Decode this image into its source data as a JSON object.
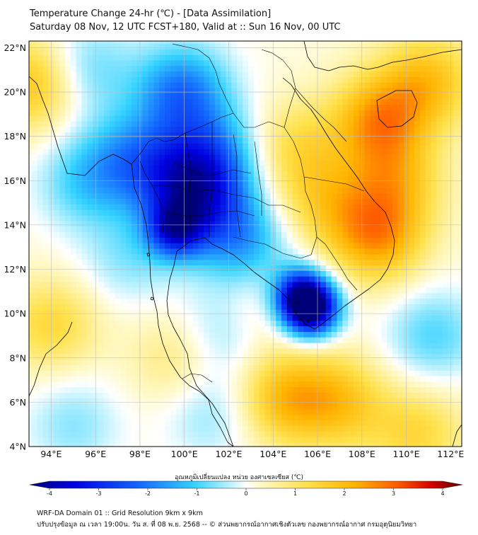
{
  "title_line1": "Temperature Change 24-hr (℃) - [Data Assimilation]",
  "title_line2": "Saturday 08 Nov, 12 UTC FCST+180, Valid at :: Sun 16 Nov, 00 UTC",
  "lat_labels": [
    "22°N",
    "20°N",
    "18°N",
    "16°N",
    "14°N",
    "12°N",
    "10°N",
    "8°N",
    "6°N",
    "4°N"
  ],
  "lon_labels": [
    "94°E",
    "96°E",
    "98°E",
    "100°E",
    "102°E",
    "104°E",
    "106°E",
    "108°E",
    "110°E",
    "112°E"
  ],
  "extent": {
    "lon_min": 93,
    "lon_max": 112.5,
    "lat_min": 4,
    "lat_max": 22.3
  },
  "colorbar": {
    "title": "อุณหภูมิเปลี่ยนแปลง หน่วย องศาเซลเซียส (℃)",
    "ticks": [
      "-4",
      "-3",
      "-2",
      "-1",
      "0",
      "1",
      "2",
      "3",
      "4"
    ],
    "min": -4,
    "max": 4
  },
  "footer_line1": "WRF-DA Domain 01 :: Grid Resolution 9km x 9km",
  "footer_line2": "ปรับปรุงข้อมูล ณ เวลา 19:00น. วัน ส. ที่ 08 พ.ย. 2568 -- © ส่วนพยากรณ์อากาศเชิงตัวเลข กองพยากรณ์อากาศ กรมอุตุนิยมวิทยา",
  "temperature_anomalies": [
    {
      "lon": 105.7,
      "lat": 10.2,
      "value": -4.0
    },
    {
      "lon": 105.2,
      "lat": 10.9,
      "value": -2.5
    },
    {
      "lon": 99.6,
      "lat": 13.8,
      "value": -2.5
    },
    {
      "lon": 99.8,
      "lat": 16.1,
      "value": -2.2
    },
    {
      "lon": 99.9,
      "lat": 20.0,
      "value": -2.0
    },
    {
      "lon": 101.2,
      "lat": 14.8,
      "value": -1.6
    },
    {
      "lon": 102.8,
      "lat": 12.9,
      "value": -1.4
    },
    {
      "lon": 101.5,
      "lat": 17.2,
      "value": -1.3
    },
    {
      "lon": 97.5,
      "lat": 17.0,
      "value": -1.3
    },
    {
      "lon": 95.5,
      "lat": 15.9,
      "value": -1.0
    },
    {
      "lon": 95.5,
      "lat": 21.0,
      "value": -1.0
    },
    {
      "lon": 111.2,
      "lat": 9.0,
      "value": -1.0
    },
    {
      "lon": 101.5,
      "lat": 9.0,
      "value": -0.8
    },
    {
      "lon": 97.5,
      "lat": 12.5,
      "value": -0.7
    },
    {
      "lon": 95.0,
      "lat": 5.0,
      "value": -0.7
    },
    {
      "lon": 101.2,
      "lat": 5.5,
      "value": -0.7
    },
    {
      "lon": 108.8,
      "lat": 18.7,
      "value": 2.0
    },
    {
      "lon": 108.7,
      "lat": 13.5,
      "value": 2.0
    },
    {
      "lon": 109.5,
      "lat": 16.0,
      "value": 1.3
    },
    {
      "lon": 111.0,
      "lat": 20.5,
      "value": 1.5
    },
    {
      "lon": 106.3,
      "lat": 15.0,
      "value": 1.1
    },
    {
      "lon": 105.0,
      "lat": 17.5,
      "value": 1.0
    },
    {
      "lon": 93.3,
      "lat": 20.4,
      "value": 1.6
    },
    {
      "lon": 104.5,
      "lat": 6.2,
      "value": 1.6
    },
    {
      "lon": 107.0,
      "lat": 6.0,
      "value": 1.4
    },
    {
      "lon": 99.8,
      "lat": 8.0,
      "value": 0.8
    },
    {
      "lon": 94.0,
      "lat": 9.5,
      "value": 1.1
    },
    {
      "lon": 110.5,
      "lat": 4.6,
      "value": 1.1
    },
    {
      "lon": 103.5,
      "lat": 10.8,
      "value": 0.6
    }
  ],
  "colors": {
    "cold_max": "#0000c8",
    "warm_max": "#7f0000",
    "neutral": "#ffffff",
    "land": "#000000"
  }
}
